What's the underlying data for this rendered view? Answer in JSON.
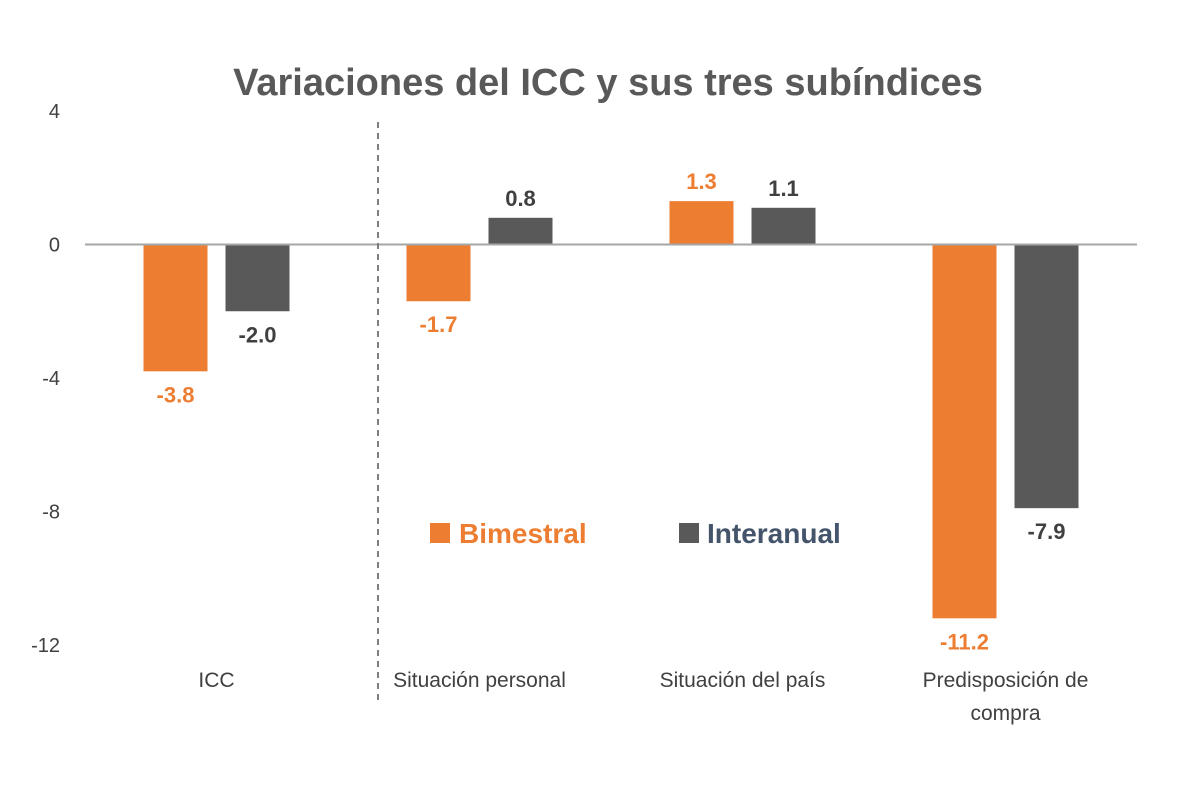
{
  "chart_data": {
    "type": "bar",
    "title": "Variaciones del ICC y sus tres subíndices",
    "categories": [
      "ICC",
      "Situación personal",
      "Situación del país",
      "Predisposición de compra"
    ],
    "category_lines": [
      [
        "ICC"
      ],
      [
        "Situación personal"
      ],
      [
        "Situación del país"
      ],
      [
        "Predisposición de",
        "compra"
      ]
    ],
    "series": [
      {
        "name": "Bimestral",
        "color": "#ED7D31",
        "values": [
          -3.8,
          -1.7,
          1.3,
          -11.2
        ],
        "labels": [
          "-3.8",
          "-1.7",
          "1.3",
          "-11.2"
        ],
        "legend_color": "#ED7D31"
      },
      {
        "name": "Interanual",
        "color": "#595959",
        "values": [
          -2.0,
          0.8,
          1.1,
          -7.9
        ],
        "labels": [
          "-2.0",
          "0.8",
          "1.1",
          "-7.9"
        ],
        "legend_color": "#44546A"
      }
    ],
    "label_colors": [
      "#ED7D31",
      "#404040"
    ],
    "ylim": [
      -12,
      4
    ],
    "yticks": [
      4,
      0,
      -4,
      -8,
      -12
    ],
    "ytick_labels": [
      "4",
      "0",
      "-4",
      "-8",
      "-12"
    ],
    "grid": false,
    "separator_after_category": "ICC",
    "legend_position": "center"
  }
}
